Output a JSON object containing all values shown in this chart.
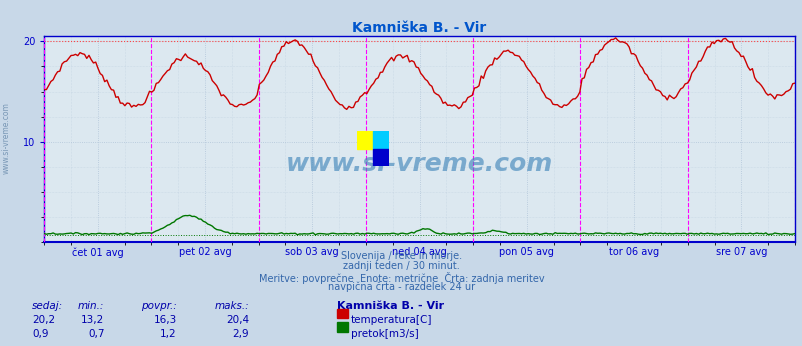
{
  "title": "Kamniška B. - Vir",
  "title_color": "#0055cc",
  "bg_color": "#c8d8e8",
  "plot_bg_color": "#dce8f0",
  "grid_color": "#b0c4d8",
  "axis_color": "#0000cc",
  "dashed_line_color": "#ff00ff",
  "temp_color": "#cc0000",
  "flow_color": "#007700",
  "ylim": [
    0,
    20.5
  ],
  "yticks": [
    10,
    20
  ],
  "n_points": 336,
  "days": 7,
  "xlabel_days": [
    "čet 01 avg",
    "pet 02 avg",
    "sob 03 avg",
    "ned 04 avg",
    "pon 05 avg",
    "tor 06 avg",
    "sre 07 avg"
  ],
  "watermark_text": "www.si-vreme.com",
  "footer_lines": [
    "Slovenija / reke in morje.",
    "zadnji teden / 30 minut.",
    "Meritve: povprečne  Enote: metrične  Črta: zadnja meritev",
    "navpična črta - razdelek 24 ur"
  ],
  "footer_color": "#3366aa",
  "stats_color": "#0000aa",
  "stats_headers": [
    "sedaj:",
    "min.:",
    "povpr.:",
    "maks.:"
  ],
  "temp_stats": [
    "20,2",
    "13,2",
    "16,3",
    "20,4"
  ],
  "flow_stats": [
    "0,9",
    "0,7",
    "1,2",
    "2,9"
  ],
  "legend_title": "Kamniška B. - Vir",
  "legend_temp": "temperatura[C]",
  "legend_flow": "pretok[m3/s]",
  "temp_max": 20.4,
  "flow_max": 2.9,
  "temp_min_val": 13.2,
  "flow_min_val": 0.7,
  "logo_colors": [
    "#ffff00",
    "#00ccff",
    "#0000cc"
  ]
}
